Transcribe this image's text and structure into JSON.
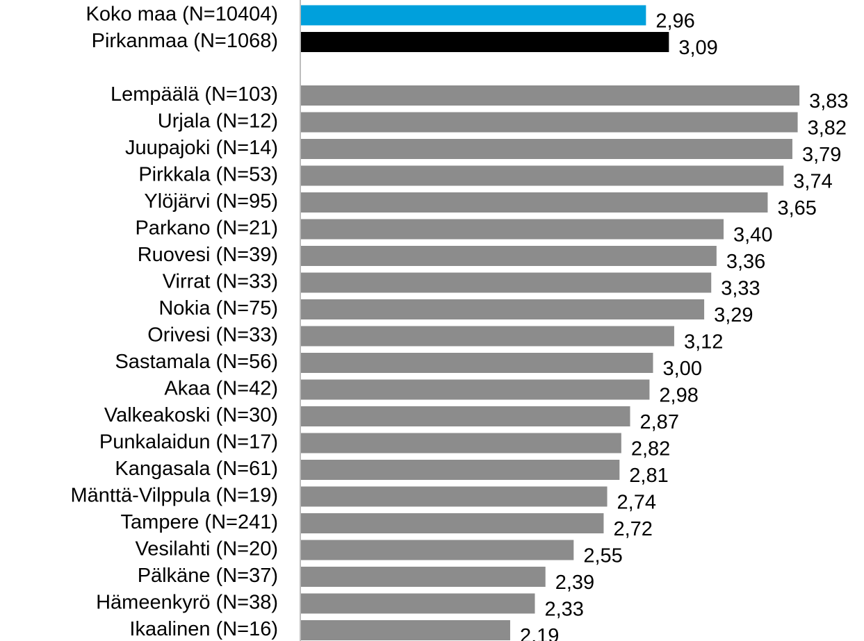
{
  "chart_data": {
    "type": "bar",
    "orientation": "horizontal",
    "categories": [
      "Koko maa (N=10404)",
      "Pirkanmaa (N=1068)",
      null,
      "Lempäälä (N=103)",
      "Urjala (N=12)",
      "Juupajoki (N=14)",
      "Pirkkala (N=53)",
      "Ylöjärvi (N=95)",
      "Parkano (N=21)",
      "Ruovesi (N=39)",
      "Virrat (N=33)",
      "Nokia (N=75)",
      "Orivesi (N=33)",
      "Sastamala (N=56)",
      "Akaa (N=42)",
      "Valkeakoski (N=30)",
      "Punkalaidun (N=17)",
      "Kangasala (N=61)",
      "Mänttä-Vilppula (N=19)",
      "Tampere (N=241)",
      "Vesilahti (N=20)",
      "Pälkäne (N=37)",
      "Hämeenkyrö (N=38)",
      "Ikaalinen (N=16)"
    ],
    "values": [
      2.96,
      3.09,
      null,
      3.83,
      3.82,
      3.79,
      3.74,
      3.65,
      3.4,
      3.36,
      3.33,
      3.29,
      3.12,
      3.0,
      2.98,
      2.87,
      2.82,
      2.81,
      2.74,
      2.72,
      2.55,
      2.39,
      2.33,
      2.19
    ],
    "value_labels": [
      "2,96",
      "3,09",
      null,
      "3,83",
      "3,82",
      "3,79",
      "3,74",
      "3,65",
      "3,40",
      "3,36",
      "3,33",
      "3,29",
      "3,12",
      "3,00",
      "2,98",
      "2,87",
      "2,82",
      "2,81",
      "2,74",
      "2,72",
      "2,55",
      "2,39",
      "2,33",
      "2,19"
    ],
    "colors": [
      "#00a0dc",
      "#000000",
      null,
      "#8c8c8c",
      "#8c8c8c",
      "#8c8c8c",
      "#8c8c8c",
      "#8c8c8c",
      "#8c8c8c",
      "#8c8c8c",
      "#8c8c8c",
      "#8c8c8c",
      "#8c8c8c",
      "#8c8c8c",
      "#8c8c8c",
      "#8c8c8c",
      "#8c8c8c",
      "#8c8c8c",
      "#8c8c8c",
      "#8c8c8c",
      "#8c8c8c",
      "#8c8c8c",
      "#8c8c8c",
      "#8c8c8c"
    ],
    "xlim": [
      1,
      4.2
    ]
  }
}
